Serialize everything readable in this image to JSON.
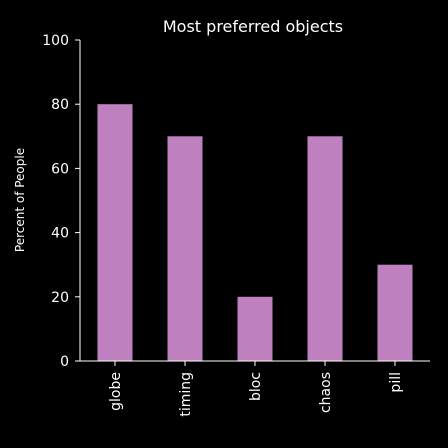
{
  "chart_data": {
    "type": "bar",
    "title": "Most preferred objects",
    "xlabel": "",
    "ylabel": "Percent of People",
    "categories": [
      "globe",
      "timing",
      "bloc",
      "chaos",
      "pill"
    ],
    "values": [
      80,
      70,
      20,
      70,
      30
    ],
    "ylim": [
      0,
      100
    ],
    "yticks": [
      0,
      20,
      40,
      60,
      80,
      100
    ],
    "grid": false,
    "bar_color": "#bf80bf",
    "background_color": "#000000",
    "text_color": "#ffffff"
  }
}
